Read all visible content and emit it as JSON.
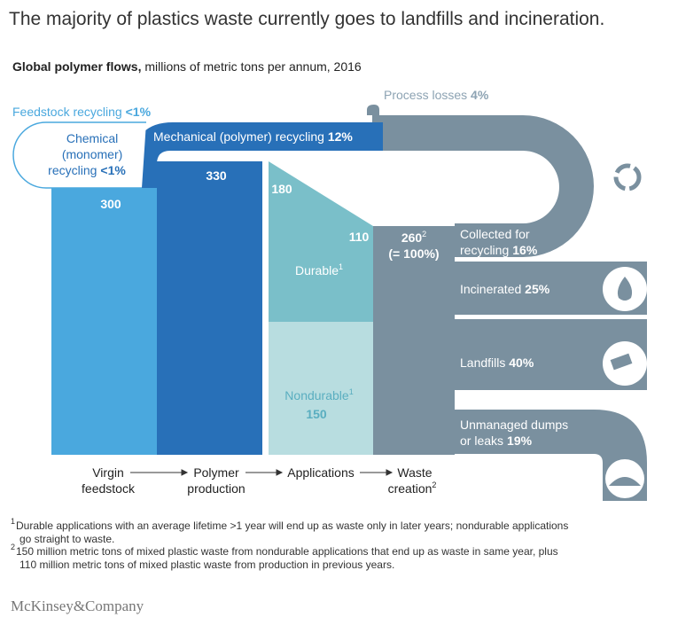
{
  "title": "The majority of plastics waste currently goes to landfills and incineration.",
  "subtitle": {
    "bold": "Global polymer flows,",
    "rest": "millions of metric tons per annum, 2016"
  },
  "feedstock_recycling": {
    "label": "Feedstock recycling",
    "value": "<1%"
  },
  "chemical_recycling": {
    "lines": [
      "Chemical",
      "(monomer)",
      "recycling"
    ],
    "value": "<1%"
  },
  "mechanical_recycling": {
    "label": "Mechanical (polymer) recycling",
    "value": "12%"
  },
  "process_losses": {
    "label": "Process losses",
    "value": "4%"
  },
  "virgin_feedstock": {
    "value": "300"
  },
  "polymer_production": {
    "value": "330"
  },
  "durable": {
    "start": "180",
    "end": "110",
    "label": "Durable",
    "note": "1"
  },
  "nondurable": {
    "label": "Nondurable",
    "note": "1",
    "value": "150"
  },
  "waste_creation": {
    "value": "260",
    "note": "2",
    "share": "(= 100%)"
  },
  "collected": {
    "lines": [
      "Collected for",
      "recycling"
    ],
    "value": "16%"
  },
  "incinerated": {
    "label": "Incinerated",
    "value": "25%"
  },
  "landfills": {
    "label": "Landfills",
    "value": "40%"
  },
  "unmanaged": {
    "lines": [
      "Unmanaged dumps",
      "or leaks"
    ],
    "value": "19%"
  },
  "stages": [
    {
      "lines": [
        "Virgin",
        "feedstock"
      ]
    },
    {
      "lines": [
        "Polymer",
        "production"
      ]
    },
    {
      "lines": [
        "Applications"
      ]
    },
    {
      "lines": [
        "Waste",
        "creation"
      ],
      "note": "2"
    }
  ],
  "footnotes": [
    {
      "marker": "1",
      "lines": [
        "Durable applications with an average lifetime >1 year will end up as waste only in later years; nondurable applications",
        "go straight to waste."
      ]
    },
    {
      "marker": "2",
      "lines": [
        "150 million metric tons of mixed plastic waste from nondurable applications that end up as waste in same year, plus",
        "110 million metric tons of mixed plastic waste from production in previous years."
      ]
    }
  ],
  "logo": "McKinsey&Company"
}
